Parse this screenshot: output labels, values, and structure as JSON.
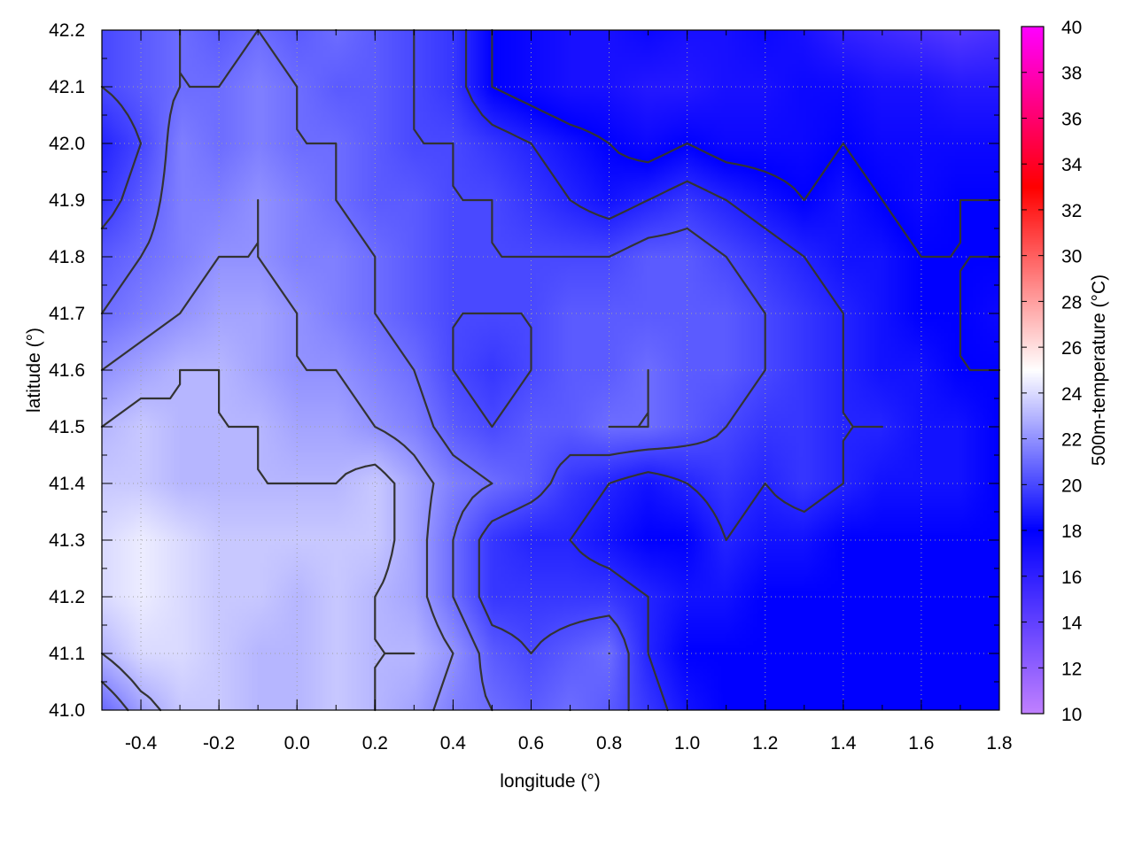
{
  "chart_data": {
    "type": "heatmap",
    "xlabel": "longitude (°)",
    "ylabel": "latitude (°)",
    "colorbar_label": "500m-temperature (°C)",
    "xlim": [
      -0.5,
      1.8
    ],
    "ylim": [
      41.0,
      42.2
    ],
    "clim": [
      10,
      40
    ],
    "xticks": [
      "-0.4",
      "-0.2",
      "0.0",
      "0.2",
      "0.4",
      "0.6",
      "0.8",
      "1.0",
      "1.2",
      "1.4",
      "1.6",
      "1.8"
    ],
    "yticks": [
      "41.0",
      "41.1",
      "41.2",
      "41.3",
      "41.4",
      "41.5",
      "41.6",
      "41.7",
      "41.8",
      "41.9",
      "42.0",
      "42.1",
      "42.2"
    ],
    "cticks": [
      "10",
      "12",
      "14",
      "16",
      "18",
      "20",
      "22",
      "24",
      "26",
      "28",
      "30",
      "32",
      "34",
      "36",
      "38",
      "40"
    ],
    "grid": true,
    "colormap": [
      [
        10,
        "#c080ff"
      ],
      [
        18,
        "#0000ff"
      ],
      [
        25,
        "#ffffff"
      ],
      [
        33,
        "#ff0000"
      ],
      [
        40,
        "#ff00ff"
      ]
    ],
    "contour_color": "#333333",
    "contour_levels": [
      18,
      19,
      20,
      21,
      22,
      23
    ],
    "grid_lon": [
      -0.5,
      -0.4,
      -0.3,
      -0.2,
      -0.1,
      0.0,
      0.1,
      0.2,
      0.3,
      0.4,
      0.5,
      0.6,
      0.7,
      0.8,
      0.9,
      1.0,
      1.1,
      1.2,
      1.3,
      1.4,
      1.5,
      1.6,
      1.7,
      1.8
    ],
    "grid_lat": [
      42.2,
      42.1,
      42.0,
      41.9,
      41.8,
      41.7,
      41.6,
      41.5,
      41.4,
      41.3,
      41.2,
      41.1,
      41.0
    ],
    "values": [
      [
        20,
        20.5,
        21,
        20.5,
        21,
        20.5,
        21,
        20.5,
        20,
        19.5,
        18,
        17.5,
        17,
        17,
        17.5,
        17,
        17,
        17.5,
        17,
        16,
        15.5,
        15,
        14.5,
        15
      ],
      [
        20,
        20.5,
        21,
        21,
        21.5,
        21,
        20.5,
        20.5,
        20,
        19.5,
        18,
        17.5,
        17,
        17,
        16.5,
        16.5,
        17,
        17,
        17.5,
        17.5,
        17,
        17,
        16.5,
        16.5
      ],
      [
        19,
        20,
        21.5,
        21,
        21.5,
        21,
        21,
        20.5,
        20,
        20,
        19.5,
        19,
        18.5,
        18,
        17.5,
        18,
        17.5,
        17.5,
        17.5,
        18,
        17.5,
        17.5,
        17.5,
        17.5
      ],
      [
        19.5,
        20.5,
        21.5,
        21.5,
        22,
        21.5,
        21,
        20.5,
        20.5,
        20,
        20,
        19.5,
        19,
        18.5,
        19,
        19.5,
        19,
        18.5,
        18,
        18.5,
        18,
        17.5,
        18,
        18
      ],
      [
        20.5,
        21,
        21.5,
        22,
        22,
        21.5,
        21.5,
        21,
        20.5,
        20,
        20,
        20,
        20,
        20,
        20.5,
        20.5,
        20,
        19.5,
        19,
        18.5,
        18.5,
        18,
        18,
        18
      ],
      [
        21,
        21.5,
        22,
        22.5,
        22.5,
        22,
        21.5,
        21,
        20.5,
        20,
        20,
        20,
        20.5,
        20.5,
        20.5,
        20.5,
        20.5,
        20,
        19.5,
        19,
        18.5,
        18,
        18,
        17.5
      ],
      [
        22,
        22.5,
        23,
        23,
        22.5,
        22,
        22,
        21.5,
        21,
        20,
        19.5,
        20,
        20.5,
        20.5,
        21,
        20.5,
        20.5,
        20,
        19.5,
        19,
        18.5,
        18.5,
        18,
        18
      ],
      [
        23,
        23.5,
        23,
        23,
        23,
        22.5,
        22.5,
        22,
        21.5,
        20.5,
        20,
        20.5,
        20.5,
        21,
        21,
        20.5,
        20,
        19.5,
        19.5,
        19,
        19,
        18.5,
        18.5,
        18
      ],
      [
        23.5,
        23.5,
        23,
        23,
        23,
        23,
        23,
        23.5,
        22.5,
        21.5,
        21,
        20.5,
        19.5,
        19,
        18.5,
        19,
        19.5,
        19,
        19.5,
        19,
        18.5,
        18.5,
        18.5,
        18
      ],
      [
        24,
        24.5,
        24,
        23.5,
        23.5,
        23.5,
        23.5,
        23.5,
        22.5,
        21,
        19.5,
        19,
        19,
        18.5,
        18,
        18,
        19,
        18.5,
        18.5,
        18,
        18,
        18,
        18,
        18
      ],
      [
        24,
        24.5,
        24,
        23.5,
        23.5,
        23,
        23.5,
        23,
        22.5,
        21,
        19.5,
        19.5,
        19.5,
        19.5,
        19,
        18.5,
        18.5,
        18,
        18,
        18,
        18,
        18,
        18,
        18
      ],
      [
        23,
        24,
        24,
        23.5,
        23,
        23,
        23.5,
        23,
        23,
        22,
        20.5,
        20,
        20.5,
        21,
        19,
        18,
        18,
        18,
        18,
        18,
        18,
        18,
        18,
        18
      ],
      [
        21,
        22.5,
        23.5,
        23.5,
        23,
        23,
        23.5,
        23,
        22.5,
        21.5,
        21,
        20.5,
        21,
        20.5,
        19.5,
        18.5,
        18,
        18,
        18,
        18,
        18,
        18,
        18,
        18
      ]
    ]
  }
}
